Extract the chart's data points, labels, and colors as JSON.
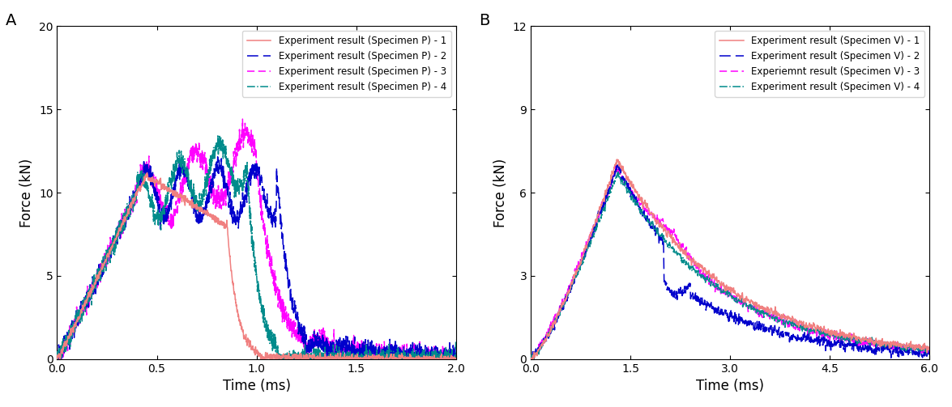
{
  "panel_A": {
    "label": "A",
    "xlim": [
      0.0,
      2.0
    ],
    "ylim": [
      0,
      20
    ],
    "xticks": [
      0.0,
      0.5,
      1.0,
      1.5,
      2.0
    ],
    "yticks": [
      0,
      5,
      10,
      15,
      20
    ],
    "xlabel": "Time (ms)",
    "ylabel": "Force (kN)",
    "legend_labels": [
      "Experiment result (Specimen P) - 1",
      "Experiment result (Specimen P) - 2",
      "Experiment result (Specimen P) - 3",
      "Experiment result (Specimen P) - 4"
    ],
    "colors": [
      "#f08080",
      "#0000cc",
      "#ff00ff",
      "#008b8b"
    ],
    "linestyles": [
      "solid",
      "dashed",
      "dashed",
      "dashdot"
    ]
  },
  "panel_B": {
    "label": "B",
    "xlim": [
      0.0,
      6.0
    ],
    "ylim": [
      0,
      12
    ],
    "xticks": [
      0.0,
      1.5,
      3.0,
      4.5,
      6.0
    ],
    "yticks": [
      0,
      3,
      6,
      9,
      12
    ],
    "xlabel": "Time (ms)",
    "ylabel": "Force (kN)",
    "legend_labels": [
      "Experiment result (Specimen V) - 1",
      "Experiment result (Specimen V) - 2",
      "Experiemnt result (Specimen V) - 3",
      "Experiment result (Specimen V) - 4"
    ],
    "colors": [
      "#f08080",
      "#0000cc",
      "#ff00ff",
      "#008b8b"
    ],
    "linestyles": [
      "solid",
      "dashed",
      "dashed",
      "dashdot"
    ]
  }
}
